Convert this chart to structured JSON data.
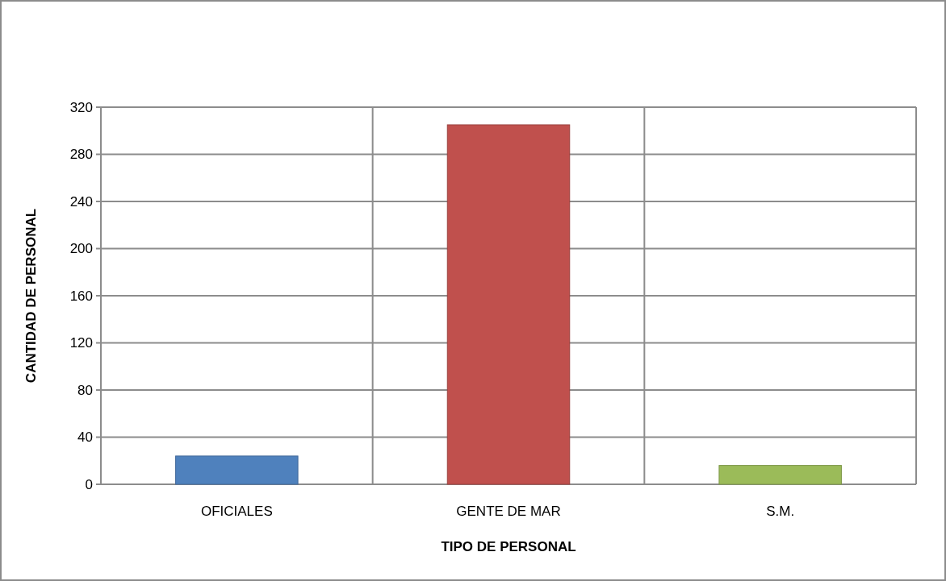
{
  "chart_data": {
    "type": "bar",
    "categories": [
      "OFICIALES",
      "GENTE DE MAR",
      "S.M."
    ],
    "values": [
      24,
      305,
      16
    ],
    "colors": [
      "#4f81bd",
      "#c0504d",
      "#9bbb59"
    ],
    "xlabel": "TIPO DE PERSONAL",
    "ylabel": "CANTIDAD DE PERSONAL",
    "ylim": [
      0,
      320
    ],
    "yticks": [
      0,
      40,
      80,
      120,
      160,
      200,
      240,
      280,
      320
    ],
    "grid": true
  }
}
